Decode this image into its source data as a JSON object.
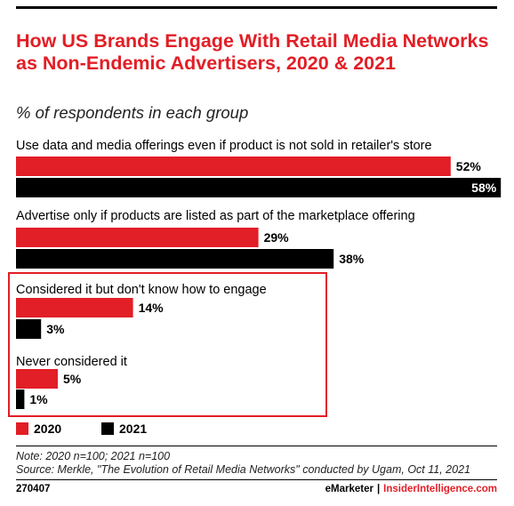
{
  "header": {
    "title": "How US Brands Engage With Retail Media Networks as Non-Endemic Advertisers, 2020 & 2021",
    "subtitle": "% of respondents in each group"
  },
  "colors": {
    "series_2020": "#e21e26",
    "series_2021": "#000000",
    "highlight": "#e21e26"
  },
  "chart_data": {
    "type": "bar",
    "orientation": "horizontal",
    "title": "How US Brands Engage With Retail Media Networks as Non-Endemic Advertisers, 2020 & 2021",
    "subtitle": "% of respondents in each group",
    "categories": [
      "Use data and media offerings even if product is not sold in retailer's store",
      "Advertise only if products are listed as part of the marketplace offering",
      "Considered it but don't know how to engage",
      "Never considered it"
    ],
    "series": [
      {
        "name": "2020",
        "values": [
          52,
          29,
          14,
          5
        ],
        "labels": [
          "52%",
          "29%",
          "14%",
          "5%"
        ]
      },
      {
        "name": "2021",
        "values": [
          58,
          38,
          3,
          1
        ],
        "labels": [
          "58%",
          "38%",
          "3%",
          "1%"
        ]
      }
    ],
    "legend": "bottom-left",
    "grid": false
  },
  "footer": {
    "note": "Note: 2020 n=100; 2021 n=100",
    "source": "Source: Merkle, \"The Evolution of Retail Media Networks\" conducted by Ugam, Oct 11, 2021",
    "code": "270407",
    "brand_emarketer": "eMarketer",
    "brand_separator": "|",
    "brand_insider": "InsiderIntelligence.com"
  }
}
